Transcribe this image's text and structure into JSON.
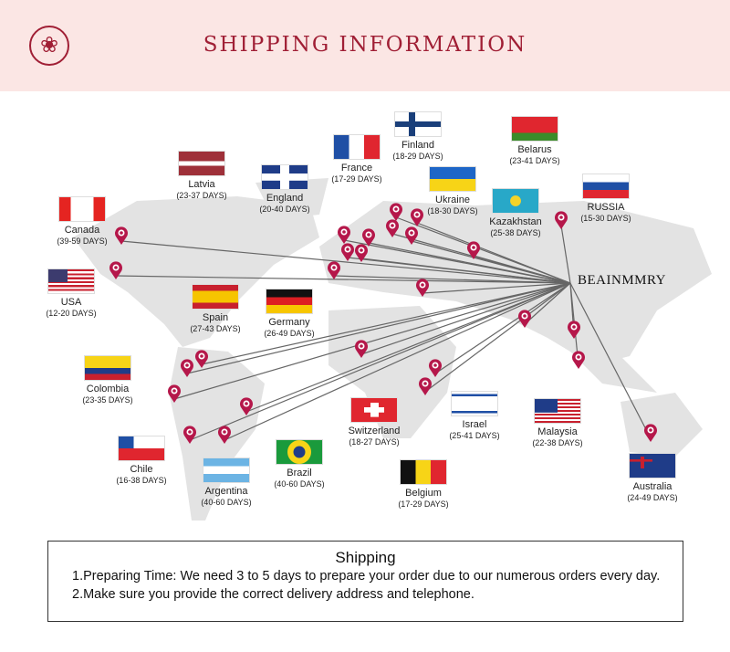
{
  "header": {
    "title": "SHIPPING  INFORMATION",
    "logo": "rose-logo-icon"
  },
  "hub": "BEAINMMRY",
  "pin_color": "#b5174a",
  "countries": [
    {
      "name": "Canada",
      "days": "(39-59 DAYS)",
      "flag": "canada"
    },
    {
      "name": "Latvia",
      "days": "(23-37 DAYS)",
      "flag": "latvia"
    },
    {
      "name": "England",
      "days": "(20-40 DAYS)",
      "flag": "uk"
    },
    {
      "name": "France",
      "days": "(17-29 DAYS)",
      "flag": "france"
    },
    {
      "name": "Finland",
      "days": "(18-29 DAYS)",
      "flag": "finland"
    },
    {
      "name": "Belarus",
      "days": "(23-41 DAYS)",
      "flag": "belarus"
    },
    {
      "name": "Ukraine",
      "days": "(18-30 DAYS)",
      "flag": "ukraine"
    },
    {
      "name": "Kazakhstan",
      "days": "(25-38 DAYS)",
      "flag": "kazakhstan"
    },
    {
      "name": "RUSSIA",
      "days": "(15-30 DAYS)",
      "flag": "russia"
    },
    {
      "name": "USA",
      "days": "(12-20 DAYS)",
      "flag": "usa"
    },
    {
      "name": "Spain",
      "days": "(27-43 DAYS)",
      "flag": "spain"
    },
    {
      "name": "Germany",
      "days": "(26-49 DAYS)",
      "flag": "germany"
    },
    {
      "name": "Colombia",
      "days": "(23-35 DAYS)",
      "flag": "colombia"
    },
    {
      "name": "Switzerland",
      "days": "(18-27 DAYS)",
      "flag": "switzerland"
    },
    {
      "name": "Israel",
      "days": "(25-41 DAYS)",
      "flag": "israel"
    },
    {
      "name": "Malaysia",
      "days": "(22-38 DAYS)",
      "flag": "malaysia"
    },
    {
      "name": "Chile",
      "days": "(16-38 DAYS)",
      "flag": "chile"
    },
    {
      "name": "Brazil",
      "days": "(40-60 DAYS)",
      "flag": "brazil"
    },
    {
      "name": "Argentina",
      "days": "(40-60 DAYS)",
      "flag": "argentina"
    },
    {
      "name": "Belgium",
      "days": "(17-29 DAYS)",
      "flag": "belgium"
    },
    {
      "name": "Australia",
      "days": "(24-49 DAYS)",
      "flag": "australia"
    }
  ],
  "shipping": {
    "title": "Shipping",
    "line1": "1.Preparing Time: We need 3 to 5 days to prepare your order due to our numerous orders every day.",
    "line2": "2.Make sure you provide the correct delivery address and telephone."
  }
}
